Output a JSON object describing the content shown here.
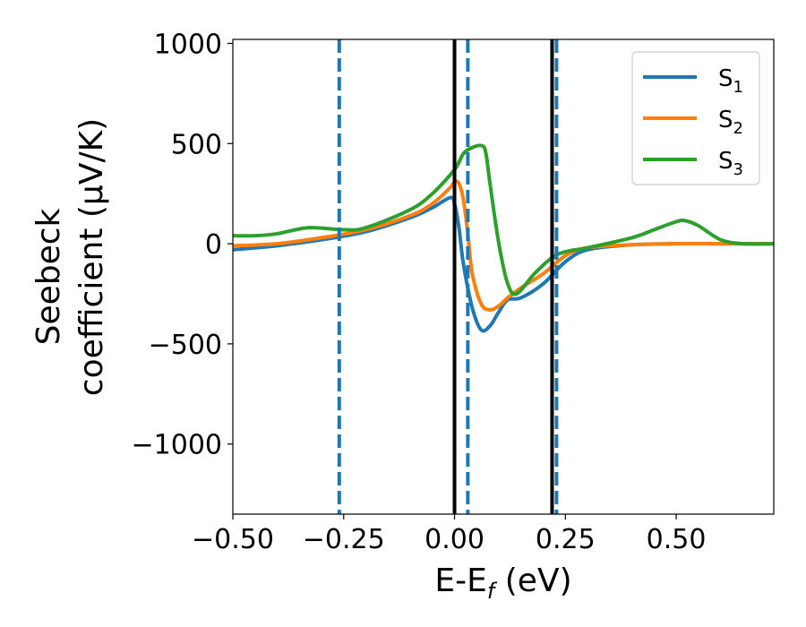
{
  "chart_data": {
    "type": "line",
    "title": "",
    "xlabel_parts": [
      "E-E",
      "f",
      " (eV)"
    ],
    "ylabel_lines": [
      "Seebeck",
      "coefficient  (μV/K)"
    ],
    "xlim": [
      -0.5,
      0.72
    ],
    "ylim": [
      -1350,
      1020
    ],
    "x_ticks": [
      -0.5,
      -0.25,
      0.0,
      0.25,
      0.5
    ],
    "x_tick_labels": [
      "−0.50",
      "−0.25",
      "0.00",
      "0.25",
      "0.50"
    ],
    "y_ticks": [
      1000,
      500,
      0,
      -500,
      -1000
    ],
    "y_tick_labels": [
      "1000",
      "500",
      "0",
      "−500",
      "−1000"
    ],
    "grid": false,
    "legend_position": "top-right",
    "vlines_solid": [
      0.0,
      0.22
    ],
    "vlines_dashed": [
      -0.26,
      0.03,
      0.23
    ],
    "colors": {
      "solid_vline": "#000000",
      "dashed_vline": "#1f77b4"
    },
    "series": [
      {
        "name": "S1",
        "label_base": "S",
        "label_sub": "1",
        "color": "#1f77b4",
        "x": [
          -0.5,
          -0.4,
          -0.3,
          -0.2,
          -0.1,
          -0.05,
          -0.01,
          0.0,
          0.01,
          0.02,
          0.04,
          0.06,
          0.08,
          0.1,
          0.12,
          0.15,
          0.2,
          0.25,
          0.3,
          0.4,
          0.5,
          0.6,
          0.72
        ],
        "y": [
          -30,
          -10,
          20,
          60,
          130,
          180,
          230,
          200,
          80,
          -100,
          -320,
          -430,
          -410,
          -340,
          -280,
          -270,
          -200,
          -90,
          -30,
          -5,
          0,
          0,
          0
        ]
      },
      {
        "name": "S2",
        "label_base": "S",
        "label_sub": "2",
        "color": "#ff7f0e",
        "x": [
          -0.5,
          -0.4,
          -0.3,
          -0.2,
          -0.1,
          -0.05,
          -0.01,
          0.0,
          0.01,
          0.02,
          0.03,
          0.04,
          0.06,
          0.08,
          0.1,
          0.12,
          0.15,
          0.2,
          0.25,
          0.3,
          0.4,
          0.5,
          0.6,
          0.72
        ],
        "y": [
          -10,
          0,
          30,
          70,
          140,
          200,
          280,
          310,
          300,
          220,
          50,
          -150,
          -300,
          -330,
          -310,
          -270,
          -220,
          -150,
          -60,
          -20,
          -5,
          0,
          0,
          0
        ]
      },
      {
        "name": "S3",
        "label_base": "S",
        "label_sub": "3",
        "color": "#2ca02c",
        "x": [
          -0.5,
          -0.45,
          -0.4,
          -0.33,
          -0.25,
          -0.2,
          -0.1,
          -0.05,
          0.0,
          0.02,
          0.04,
          0.06,
          0.07,
          0.08,
          0.1,
          0.12,
          0.14,
          0.18,
          0.22,
          0.25,
          0.3,
          0.4,
          0.45,
          0.5,
          0.52,
          0.55,
          0.6,
          0.65,
          0.72
        ],
        "y": [
          40,
          40,
          50,
          80,
          70,
          80,
          170,
          250,
          370,
          450,
          480,
          490,
          460,
          300,
          0,
          -200,
          -250,
          -150,
          -70,
          -40,
          -20,
          30,
          70,
          110,
          115,
          90,
          20,
          0,
          0
        ]
      }
    ]
  }
}
